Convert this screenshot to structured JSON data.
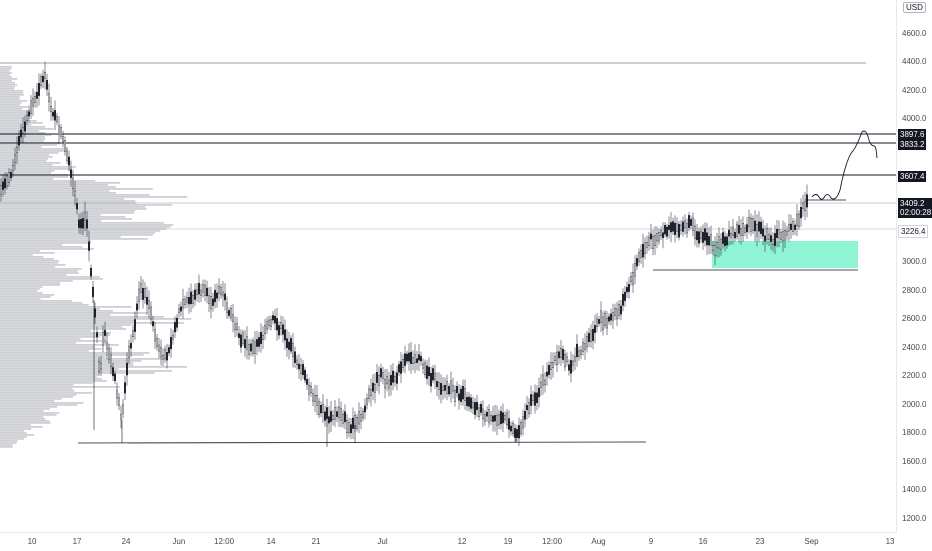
{
  "currency": "USD",
  "price_axis": {
    "ticks": [
      "4600.0",
      "4400.0",
      "4200.0",
      "4000.0",
      "3800.0",
      "3600.0",
      "3400.0",
      "3200.0",
      "3000.0",
      "2800.0",
      "2600.0",
      "2400.0",
      "2200.0",
      "2000.0",
      "1800.0",
      "1600.0",
      "1400.0",
      "1200.0"
    ]
  },
  "time_axis": {
    "ticks": [
      "10",
      "17",
      "24",
      "Jun",
      "12:00",
      "14",
      "21",
      "Jul",
      "12",
      "19",
      "12:00",
      "Aug",
      "9",
      "16",
      "23",
      "Sep",
      "13"
    ]
  },
  "level_tags": [
    "3897.6",
    "3833.2",
    "3607.4",
    "3226.4"
  ],
  "current_price": {
    "value": "3409.2",
    "countdown": "02:00:28"
  },
  "colors": {
    "candles": "#131722",
    "volume_profile": "#c9cbd0",
    "zone": "#5ff0c1",
    "level_line": "#131722"
  }
}
